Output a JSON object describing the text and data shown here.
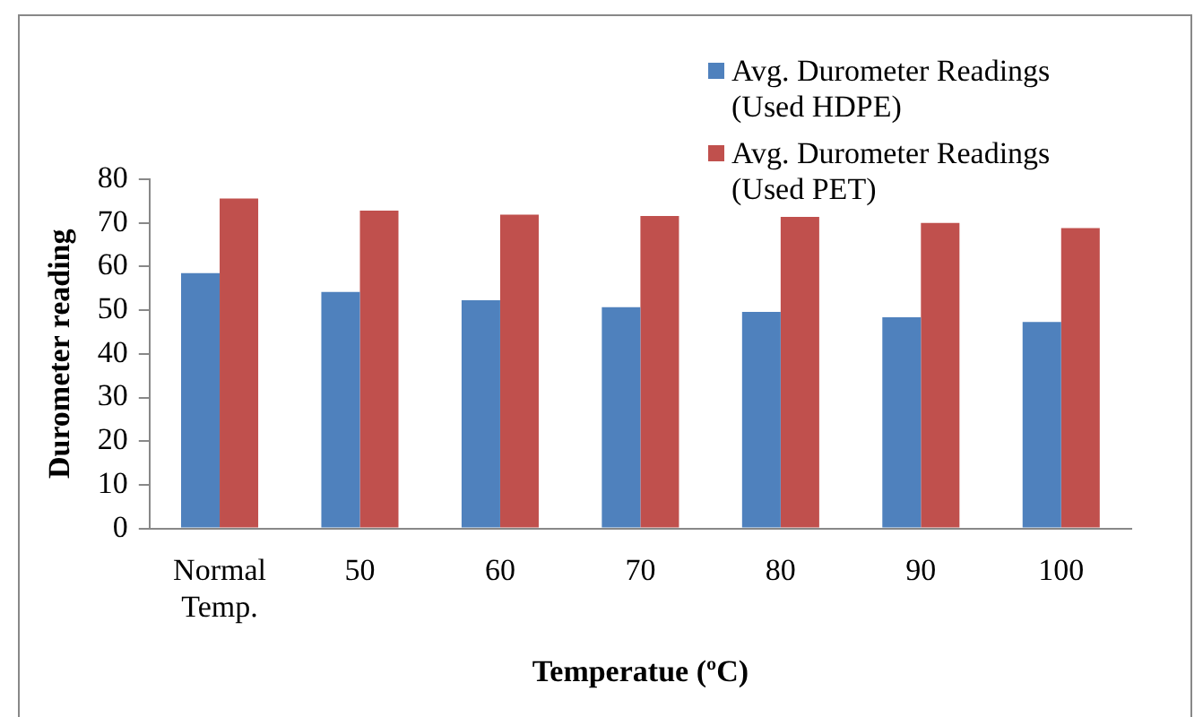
{
  "chart_data": {
    "type": "bar",
    "xlabel": "Temperatue (ºC)",
    "ylabel": "Durometer reading",
    "categories": [
      "Normal Temp.",
      "50",
      "60",
      "70",
      "80",
      "90",
      "100"
    ],
    "series": [
      {
        "name": "Avg. Durometer Readings (Used HDPE)",
        "color": "#4f81bd",
        "values": [
          58.5,
          54.2,
          52.3,
          50.7,
          49.6,
          48.4,
          47.3
        ]
      },
      {
        "name": "Avg. Durometer Readings (Used PET)",
        "color": "#c0504d",
        "values": [
          75.6,
          72.8,
          71.9,
          71.6,
          71.4,
          70.0,
          68.8
        ]
      }
    ],
    "ylim": [
      0,
      80
    ],
    "yticks": [
      0,
      10,
      20,
      30,
      40,
      50,
      60,
      70,
      80
    ],
    "grid": false,
    "legend": "top right"
  }
}
